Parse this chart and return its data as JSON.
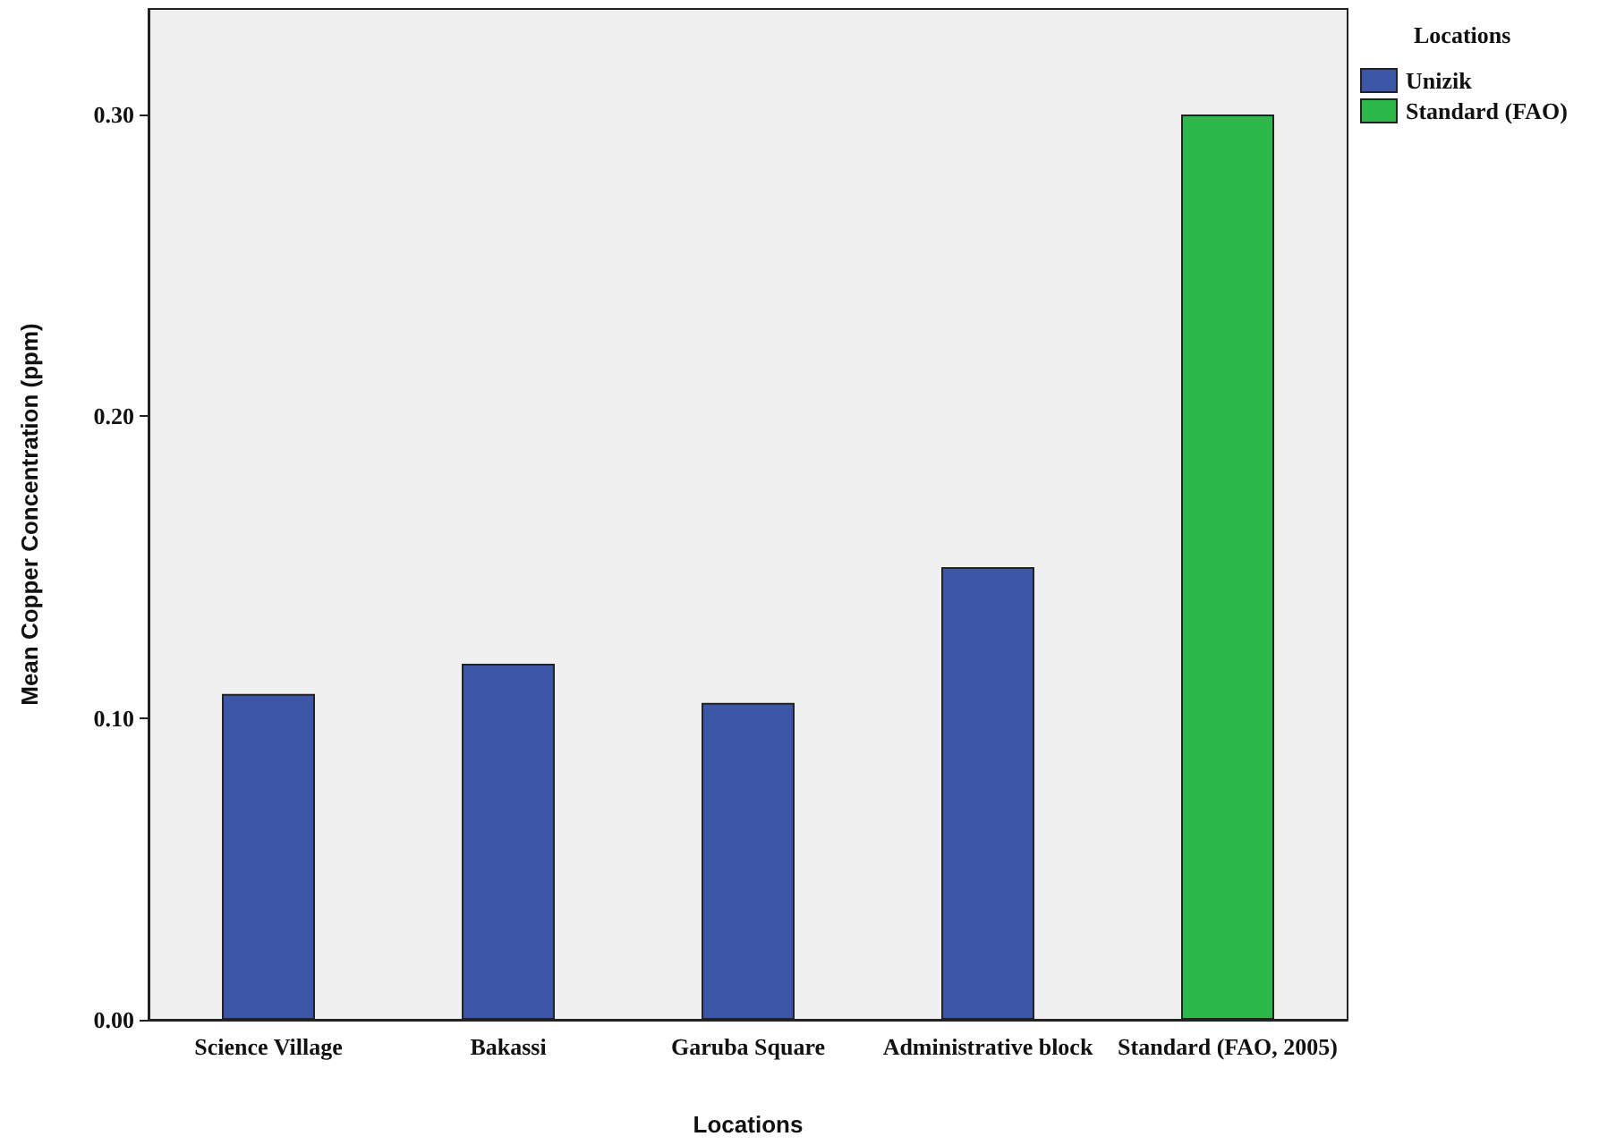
{
  "chart_data": {
    "type": "bar",
    "xlabel": "Locations",
    "ylabel": "Mean Copper Concentration (ppm)",
    "legend_title": "Locations",
    "categories": [
      "Science Village",
      "Bakassi",
      "Garuba Square",
      "Administrative block",
      "Standard (FAO, 2005)"
    ],
    "series": [
      {
        "name": "Unizik",
        "color": "#3c56a8",
        "values": [
          0.108,
          0.118,
          0.105,
          0.15,
          null
        ]
      },
      {
        "name": "Standard (FAO)",
        "color": "#2db84a",
        "values": [
          null,
          null,
          null,
          null,
          0.3
        ]
      }
    ],
    "ylim": [
      0,
      0.335
    ],
    "yticks": [
      {
        "value": 0,
        "label": "0.00"
      },
      {
        "value": 0.1,
        "label": "0.10"
      },
      {
        "value": 0.2,
        "label": "0.20"
      },
      {
        "value": 0.3,
        "label": "0.30"
      }
    ],
    "grid": false,
    "legend": "top right"
  }
}
